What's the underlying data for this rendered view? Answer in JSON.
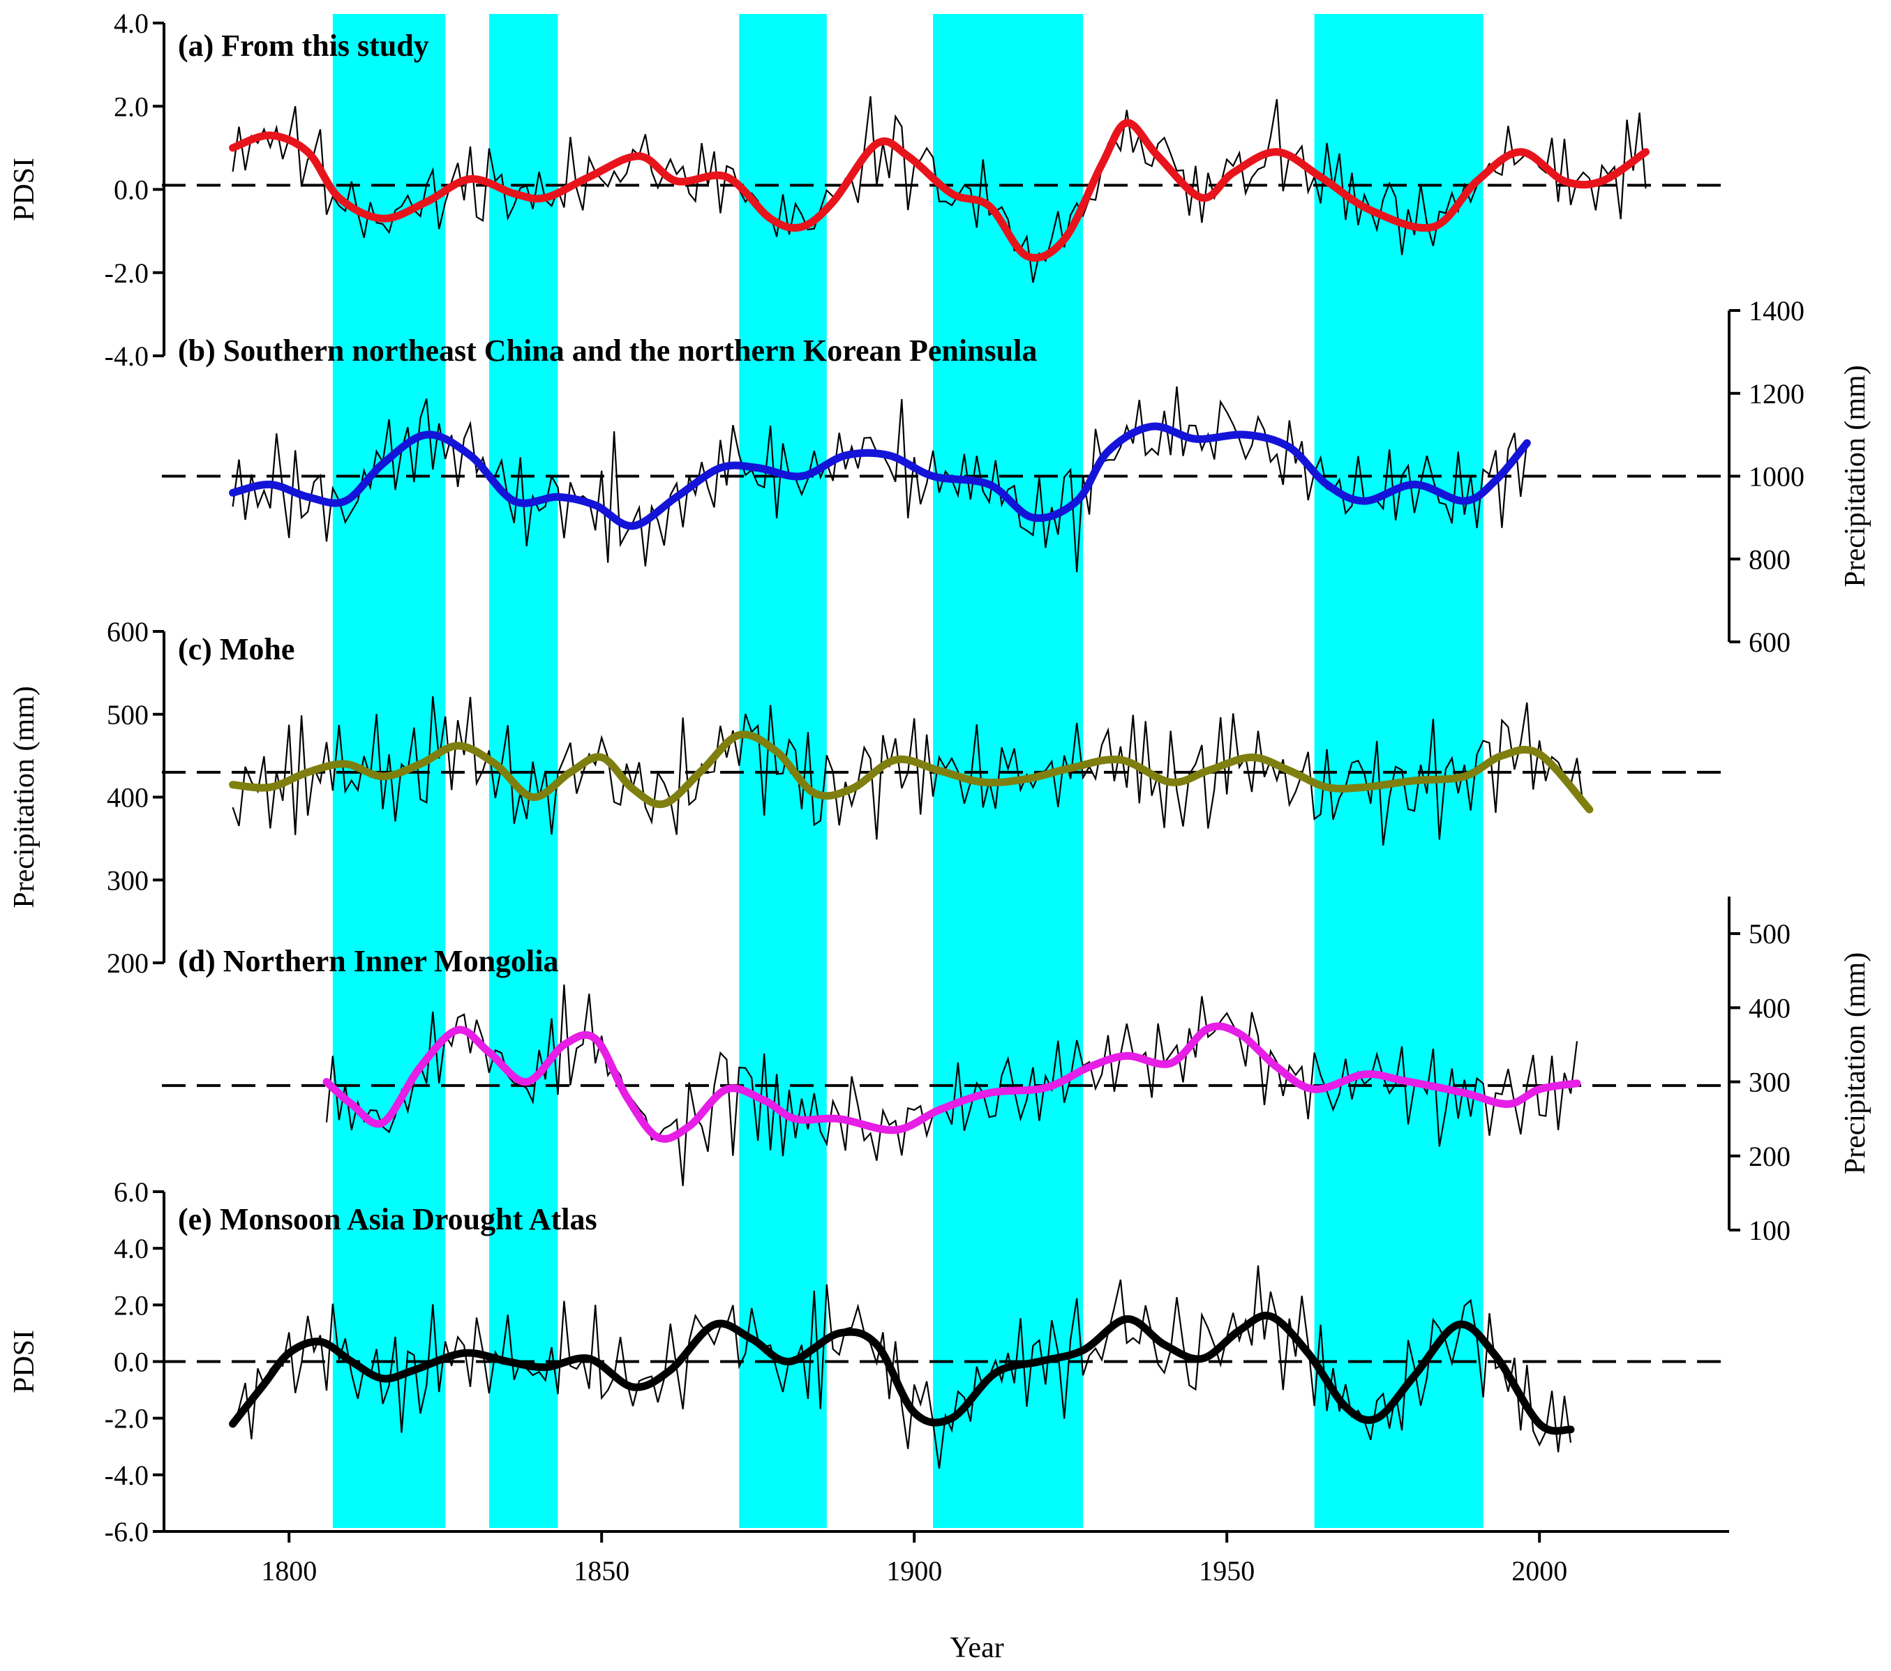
{
  "chart_data": {
    "type": "line",
    "figure_xlabel": "Year",
    "x_ticks": [
      1800,
      1850,
      1900,
      1950,
      2000
    ],
    "xlim": [
      1780,
      2030
    ],
    "highlight_bands": [
      [
        1807,
        1825
      ],
      [
        1832,
        1843
      ],
      [
        1872,
        1886
      ],
      [
        1903,
        1927
      ],
      [
        1964,
        1991
      ]
    ],
    "highlight_color": "#00ffff",
    "panels": [
      {
        "id": "a",
        "title": "(a) From this study",
        "ylabel": "PDSI",
        "axis_side": "left",
        "ylim": [
          -4.0,
          4.0
        ],
        "y_ticks": [
          "4.0",
          "2.0",
          "0.0",
          "-2.0",
          "-4.0"
        ],
        "y_tick_values": [
          4,
          2,
          0,
          -2,
          -4
        ],
        "reference": 0.1,
        "x_range": [
          1791,
          2017
        ],
        "smooth_color": "#e8141c",
        "smooth_knots": [
          [
            1791,
            1.0
          ],
          [
            1797,
            1.3
          ],
          [
            1803,
            0.9
          ],
          [
            1808,
            -0.2
          ],
          [
            1815,
            -0.7
          ],
          [
            1822,
            -0.3
          ],
          [
            1829,
            0.25
          ],
          [
            1836,
            -0.1
          ],
          [
            1841,
            -0.2
          ],
          [
            1848,
            0.3
          ],
          [
            1856,
            0.8
          ],
          [
            1862,
            0.2
          ],
          [
            1870,
            0.3
          ],
          [
            1877,
            -0.7
          ],
          [
            1882,
            -0.9
          ],
          [
            1887,
            -0.3
          ],
          [
            1894,
            1.1
          ],
          [
            1899,
            0.8
          ],
          [
            1906,
            -0.1
          ],
          [
            1912,
            -0.4
          ],
          [
            1918,
            -1.6
          ],
          [
            1924,
            -1.2
          ],
          [
            1930,
            0.6
          ],
          [
            1934,
            1.6
          ],
          [
            1939,
            0.8
          ],
          [
            1946,
            -0.2
          ],
          [
            1951,
            0.4
          ],
          [
            1958,
            0.9
          ],
          [
            1965,
            0.3
          ],
          [
            1973,
            -0.5
          ],
          [
            1983,
            -0.9
          ],
          [
            1990,
            0.2
          ],
          [
            1997,
            0.9
          ],
          [
            2004,
            0.2
          ],
          [
            2010,
            0.2
          ],
          [
            2017,
            0.9
          ]
        ],
        "raw_amp": 1.3,
        "raw_seed": 11
      },
      {
        "id": "b",
        "title": "(b) Southern northeast China and the northern Korean Peninsula",
        "ylabel": "Precipitation (mm)",
        "axis_side": "right",
        "ylim": [
          600,
          1400
        ],
        "y_ticks": [
          "1400",
          "1200",
          "1000",
          "800",
          "600"
        ],
        "y_tick_values": [
          1400,
          1200,
          1000,
          800,
          600
        ],
        "reference": 1000,
        "x_range": [
          1791,
          1998
        ],
        "smooth_color": "#1414d8",
        "smooth_knots": [
          [
            1791,
            960
          ],
          [
            1797,
            980
          ],
          [
            1803,
            950
          ],
          [
            1809,
            940
          ],
          [
            1815,
            1030
          ],
          [
            1822,
            1100
          ],
          [
            1829,
            1050
          ],
          [
            1836,
            940
          ],
          [
            1843,
            950
          ],
          [
            1849,
            930
          ],
          [
            1855,
            880
          ],
          [
            1862,
            950
          ],
          [
            1869,
            1020
          ],
          [
            1875,
            1020
          ],
          [
            1882,
            1000
          ],
          [
            1889,
            1050
          ],
          [
            1896,
            1050
          ],
          [
            1903,
            1000
          ],
          [
            1912,
            980
          ],
          [
            1919,
            900
          ],
          [
            1926,
            940
          ],
          [
            1931,
            1060
          ],
          [
            1938,
            1120
          ],
          [
            1945,
            1090
          ],
          [
            1953,
            1100
          ],
          [
            1960,
            1070
          ],
          [
            1966,
            980
          ],
          [
            1972,
            940
          ],
          [
            1980,
            980
          ],
          [
            1988,
            940
          ],
          [
            1993,
            990
          ],
          [
            1998,
            1080
          ]
        ],
        "raw_amp": 150,
        "raw_seed": 23
      },
      {
        "id": "c",
        "title": "(c) Mohe",
        "ylabel": "Precipitation (mm)",
        "axis_side": "left",
        "ylim": [
          200,
          600
        ],
        "y_ticks": [
          "600",
          "500",
          "400",
          "300",
          "200"
        ],
        "y_tick_values": [
          600,
          500,
          400,
          300,
          200
        ],
        "reference": 430,
        "x_range": [
          1791,
          2008
        ],
        "smooth_color": "#7f7f10",
        "smooth_knots": [
          [
            1791,
            415
          ],
          [
            1797,
            412
          ],
          [
            1803,
            430
          ],
          [
            1809,
            440
          ],
          [
            1815,
            425
          ],
          [
            1821,
            440
          ],
          [
            1827,
            462
          ],
          [
            1833,
            440
          ],
          [
            1839,
            400
          ],
          [
            1845,
            430
          ],
          [
            1850,
            448
          ],
          [
            1855,
            410
          ],
          [
            1860,
            392
          ],
          [
            1866,
            432
          ],
          [
            1872,
            475
          ],
          [
            1878,
            455
          ],
          [
            1884,
            405
          ],
          [
            1890,
            410
          ],
          [
            1897,
            445
          ],
          [
            1904,
            432
          ],
          [
            1911,
            418
          ],
          [
            1918,
            422
          ],
          [
            1925,
            435
          ],
          [
            1933,
            445
          ],
          [
            1941,
            418
          ],
          [
            1947,
            432
          ],
          [
            1954,
            448
          ],
          [
            1960,
            432
          ],
          [
            1966,
            412
          ],
          [
            1972,
            412
          ],
          [
            1980,
            420
          ],
          [
            1988,
            425
          ],
          [
            1994,
            450
          ],
          [
            2000,
            452
          ],
          [
            2008,
            385
          ]
        ],
        "raw_amp": 85,
        "raw_seed": 37
      },
      {
        "id": "d",
        "title": "(d) Northern Inner Mongolia",
        "ylabel": "Precipitation (mm)",
        "axis_side": "right",
        "ylim": [
          100,
          550
        ],
        "y_ticks": [
          "500",
          "400",
          "300",
          "200",
          "100"
        ],
        "y_tick_values": [
          500,
          400,
          300,
          200,
          100
        ],
        "reference": 295,
        "x_range": [
          1806,
          2006
        ],
        "smooth_color": "#e61ee6",
        "smooth_knots": [
          [
            1806,
            300
          ],
          [
            1810,
            270
          ],
          [
            1815,
            245
          ],
          [
            1821,
            320
          ],
          [
            1827,
            370
          ],
          [
            1832,
            340
          ],
          [
            1838,
            300
          ],
          [
            1844,
            350
          ],
          [
            1849,
            358
          ],
          [
            1854,
            280
          ],
          [
            1859,
            225
          ],
          [
            1864,
            240
          ],
          [
            1870,
            290
          ],
          [
            1876,
            275
          ],
          [
            1881,
            250
          ],
          [
            1888,
            250
          ],
          [
            1897,
            235
          ],
          [
            1904,
            262
          ],
          [
            1912,
            285
          ],
          [
            1921,
            292
          ],
          [
            1928,
            320
          ],
          [
            1934,
            335
          ],
          [
            1941,
            325
          ],
          [
            1947,
            372
          ],
          [
            1952,
            365
          ],
          [
            1958,
            320
          ],
          [
            1964,
            290
          ],
          [
            1972,
            310
          ],
          [
            1978,
            302
          ],
          [
            1988,
            285
          ],
          [
            1995,
            270
          ],
          [
            2000,
            290
          ],
          [
            2006,
            298
          ]
        ],
        "raw_amp": 75,
        "raw_seed": 53
      },
      {
        "id": "e",
        "title": "(e) Monsoon Asia Drought Atlas",
        "ylabel": "PDSI",
        "axis_side": "left",
        "ylim": [
          -6.0,
          6.0
        ],
        "y_ticks": [
          "6.0",
          "4.0",
          "2.0",
          "0.0",
          "-2.0",
          "-4.0",
          "-6.0"
        ],
        "y_tick_values": [
          6,
          4,
          2,
          0,
          -2,
          -4,
          -6
        ],
        "reference": 0.0,
        "x_range": [
          1791,
          2005
        ],
        "smooth_color": "#000000",
        "smooth_knots": [
          [
            1791,
            -2.2
          ],
          [
            1796,
            -0.8
          ],
          [
            1800,
            0.3
          ],
          [
            1805,
            0.7
          ],
          [
            1810,
            0.0
          ],
          [
            1815,
            -0.6
          ],
          [
            1820,
            -0.3
          ],
          [
            1828,
            0.3
          ],
          [
            1835,
            0.0
          ],
          [
            1841,
            -0.2
          ],
          [
            1848,
            0.1
          ],
          [
            1855,
            -0.9
          ],
          [
            1861,
            -0.3
          ],
          [
            1868,
            1.3
          ],
          [
            1874,
            0.8
          ],
          [
            1880,
            0.0
          ],
          [
            1888,
            1.0
          ],
          [
            1894,
            0.6
          ],
          [
            1900,
            -1.8
          ],
          [
            1906,
            -2.0
          ],
          [
            1913,
            -0.4
          ],
          [
            1920,
            0.0
          ],
          [
            1927,
            0.4
          ],
          [
            1934,
            1.5
          ],
          [
            1940,
            0.6
          ],
          [
            1946,
            0.1
          ],
          [
            1952,
            1.1
          ],
          [
            1957,
            1.6
          ],
          [
            1963,
            0.3
          ],
          [
            1969,
            -1.6
          ],
          [
            1974,
            -2.0
          ],
          [
            1980,
            -0.5
          ],
          [
            1987,
            1.3
          ],
          [
            1993,
            0.2
          ],
          [
            2000,
            -2.2
          ],
          [
            2005,
            -2.4
          ]
        ],
        "raw_amp": 2.2,
        "raw_seed": 71
      }
    ]
  }
}
